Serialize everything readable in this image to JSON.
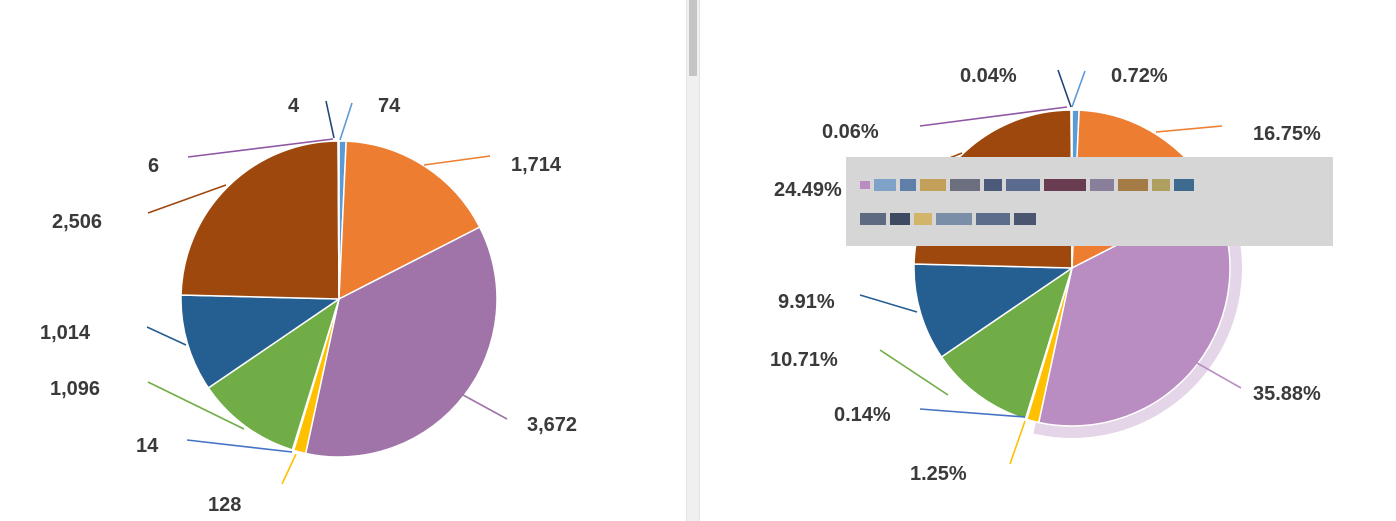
{
  "charts": [
    {
      "type": "pie",
      "slices": [
        {
          "value": 74,
          "label": "74",
          "color": "#5b9bd5"
        },
        {
          "value": 1714,
          "label": "1,714",
          "color": "#ed7d31"
        },
        {
          "value": 3672,
          "label": "3,672",
          "color": "#a074a8"
        },
        {
          "value": 128,
          "label": "128",
          "color": "#ffc000"
        },
        {
          "value": 14,
          "label": "14",
          "color": "#4472c4"
        },
        {
          "value": 1096,
          "label": "1,096",
          "color": "#70ad47"
        },
        {
          "value": 1014,
          "label": "1,014",
          "color": "#255e91"
        },
        {
          "value": 2506,
          "label": "2,506",
          "color": "#9e480e"
        },
        {
          "value": 6,
          "label": "6",
          "color": "#8e56a3"
        },
        {
          "value": 4,
          "label": "4",
          "color": "#264478"
        }
      ]
    },
    {
      "type": "pie",
      "slices": [
        {
          "value": 0.72,
          "label": "0.72%",
          "color": "#5b9bd5"
        },
        {
          "value": 16.75,
          "label": "16.75%",
          "color": "#ed7d31"
        },
        {
          "value": 35.88,
          "label": "35.88%",
          "color": "#b98cc2"
        },
        {
          "value": 1.25,
          "label": "1.25%",
          "color": "#ffc000"
        },
        {
          "value": 0.14,
          "label": "0.14%",
          "color": "#4472c4"
        },
        {
          "value": 10.71,
          "label": "10.71%",
          "color": "#70ad47"
        },
        {
          "value": 9.91,
          "label": "9.91%",
          "color": "#255e91"
        },
        {
          "value": 24.49,
          "label": "24.49%",
          "color": "#9e480e"
        },
        {
          "value": 0.06,
          "label": "0.06%",
          "color": "#8e56a3"
        },
        {
          "value": 0.04,
          "label": "0.04%",
          "color": "#264478"
        }
      ]
    }
  ]
}
